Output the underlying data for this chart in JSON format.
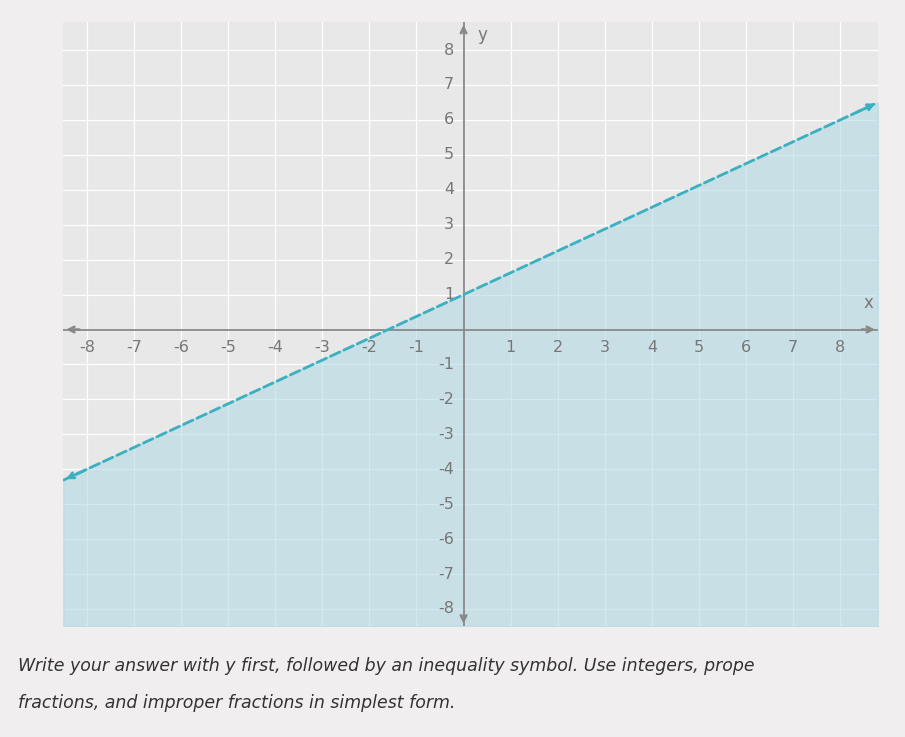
{
  "slope": 0.625,
  "intercept": 1,
  "xlim": [
    -8.5,
    8.8
  ],
  "ylim": [
    -8.5,
    8.8
  ],
  "xmin": -8,
  "xmax": 8,
  "ymin": -8,
  "ymax": 8,
  "fill_color": "#aed8e6",
  "fill_alpha": 0.55,
  "line_color": "#3ab0c0",
  "line_style": "--",
  "line_width": 2.0,
  "plot_bg_color": "#e8e8e8",
  "fig_bg_color": "#f0eeee",
  "grid_color": "#ffffff",
  "grid_lw": 0.9,
  "axis_line_color": "#888888",
  "axis_line_lw": 1.3,
  "tick_color": "#777777",
  "tick_fontsize": 11.5,
  "label_fontsize": 12,
  "xlabel": "x",
  "ylabel": "y",
  "text_line1": "Write your answer with y first, followed by an inequality symbol. Use integers, prope",
  "text_line2": "fractions, and improper fractions in simplest form.",
  "text_fontsize": 12.5,
  "text_color": "#333333"
}
